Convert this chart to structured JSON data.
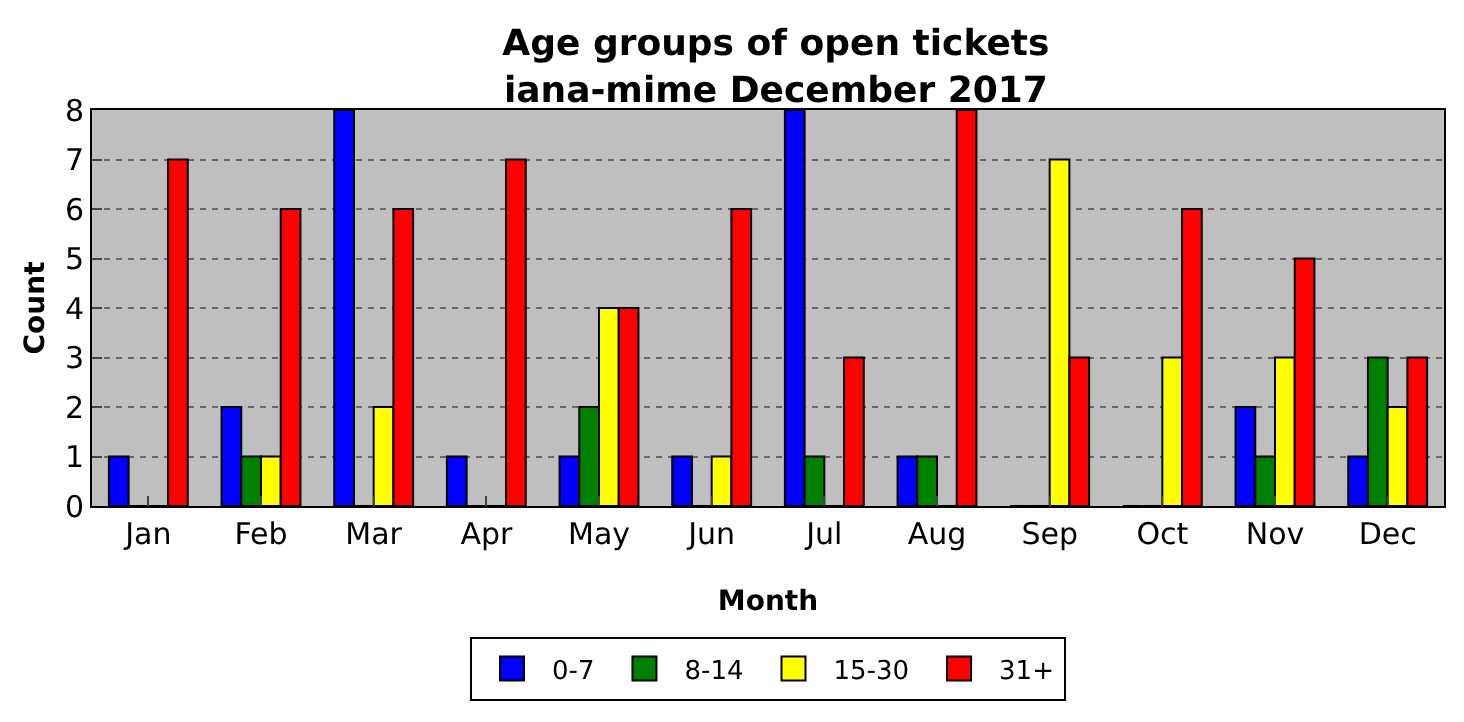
{
  "chart_data": {
    "type": "bar",
    "title": "Age groups of open tickets\niana-mime December 2017",
    "xlabel": "Month",
    "ylabel": "Count",
    "categories": [
      "Jan",
      "Feb",
      "Mar",
      "Apr",
      "May",
      "Jun",
      "Jul",
      "Aug",
      "Sep",
      "Oct",
      "Nov",
      "Dec"
    ],
    "series": [
      {
        "name": "0-7",
        "color": "#0000ff",
        "values": [
          1,
          2,
          8,
          1,
          1,
          1,
          8,
          1,
          0,
          0,
          2,
          1
        ]
      },
      {
        "name": "8-14",
        "color": "#008000",
        "values": [
          0,
          1,
          0,
          0,
          2,
          0,
          1,
          1,
          0,
          0,
          1,
          3
        ]
      },
      {
        "name": "15-30",
        "color": "#ffff00",
        "values": [
          0,
          1,
          2,
          0,
          4,
          1,
          0,
          0,
          7,
          3,
          3,
          2
        ]
      },
      {
        "name": "31+",
        "color": "#ff0000",
        "values": [
          7,
          6,
          6,
          7,
          4,
          6,
          3,
          8,
          3,
          6,
          5,
          3
        ]
      }
    ],
    "ylim": [
      0,
      8
    ],
    "yticks": [
      0,
      1,
      2,
      3,
      4,
      5,
      6,
      7,
      8
    ],
    "grid": "y",
    "legend": "bottom"
  }
}
